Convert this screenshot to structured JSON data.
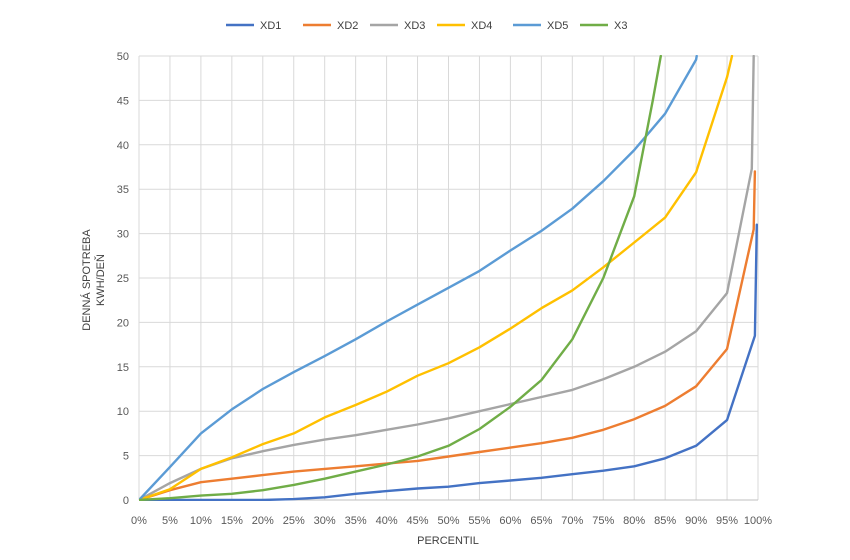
{
  "chart_data": {
    "type": "line",
    "xlabel": "PERCENTIL",
    "ylabel_line1": "DENNÁ SPOTREBA",
    "ylabel_line2": "KWH/DEŇ",
    "ylim": [
      0,
      50
    ],
    "yticks": [
      0,
      5,
      10,
      15,
      20,
      25,
      30,
      35,
      40,
      45,
      50
    ],
    "grid": "vertical and horizontal",
    "legend_position": "top",
    "x_tick_labels": [
      "0%",
      "5%",
      "10%",
      "15%",
      "20%",
      "25%",
      "30%",
      "35%",
      "40%",
      "45%",
      "50%",
      "55%",
      "60%",
      "65%",
      "70%",
      "75%",
      "80%",
      "85%",
      "90%",
      "95%",
      "100%"
    ],
    "series": [
      {
        "name": "XD1",
        "color": "#4472C4",
        "points": [
          [
            0,
            0
          ],
          [
            5,
            0
          ],
          [
            10,
            0
          ],
          [
            15,
            0
          ],
          [
            20,
            0
          ],
          [
            25,
            0.1
          ],
          [
            30,
            0.3
          ],
          [
            35,
            0.7
          ],
          [
            40,
            1.0
          ],
          [
            45,
            1.3
          ],
          [
            50,
            1.5
          ],
          [
            55,
            1.9
          ],
          [
            60,
            2.2
          ],
          [
            65,
            2.5
          ],
          [
            70,
            2.9
          ],
          [
            75,
            3.3
          ],
          [
            80,
            3.8
          ],
          [
            85,
            4.7
          ],
          [
            90,
            6.1
          ],
          [
            95,
            9.0
          ],
          [
            99.5,
            18.5
          ],
          [
            99.8,
            31
          ]
        ]
      },
      {
        "name": "XD2",
        "color": "#ED7D31",
        "points": [
          [
            0,
            0
          ],
          [
            5,
            1.1
          ],
          [
            10,
            2.0
          ],
          [
            15,
            2.4
          ],
          [
            20,
            2.8
          ],
          [
            25,
            3.2
          ],
          [
            30,
            3.5
          ],
          [
            35,
            3.8
          ],
          [
            40,
            4.1
          ],
          [
            45,
            4.4
          ],
          [
            50,
            4.9
          ],
          [
            55,
            5.4
          ],
          [
            60,
            5.9
          ],
          [
            65,
            6.4
          ],
          [
            70,
            7.0
          ],
          [
            75,
            7.9
          ],
          [
            80,
            9.1
          ],
          [
            85,
            10.6
          ],
          [
            90,
            12.8
          ],
          [
            95,
            17.0
          ],
          [
            99.3,
            30.5
          ],
          [
            99.5,
            37
          ]
        ]
      },
      {
        "name": "XD3",
        "color": "#A5A5A5",
        "points": [
          [
            0,
            0
          ],
          [
            5,
            1.9
          ],
          [
            10,
            3.5
          ],
          [
            15,
            4.7
          ],
          [
            20,
            5.5
          ],
          [
            25,
            6.2
          ],
          [
            30,
            6.8
          ],
          [
            35,
            7.3
          ],
          [
            40,
            7.9
          ],
          [
            45,
            8.5
          ],
          [
            50,
            9.2
          ],
          [
            55,
            10.0
          ],
          [
            60,
            10.8
          ],
          [
            65,
            11.6
          ],
          [
            70,
            12.4
          ],
          [
            75,
            13.6
          ],
          [
            80,
            15.0
          ],
          [
            85,
            16.7
          ],
          [
            90,
            19.0
          ],
          [
            95,
            23.3
          ],
          [
            99.0,
            37.3
          ],
          [
            99.3,
            50
          ]
        ]
      },
      {
        "name": "XD4",
        "color": "#FFC000",
        "points": [
          [
            0,
            0
          ],
          [
            5,
            1.2
          ],
          [
            10,
            3.5
          ],
          [
            15,
            4.8
          ],
          [
            20,
            6.3
          ],
          [
            25,
            7.5
          ],
          [
            30,
            9.3
          ],
          [
            35,
            10.7
          ],
          [
            40,
            12.2
          ],
          [
            45,
            14.0
          ],
          [
            50,
            15.4
          ],
          [
            55,
            17.2
          ],
          [
            60,
            19.3
          ],
          [
            65,
            21.6
          ],
          [
            70,
            23.6
          ],
          [
            75,
            26.2
          ],
          [
            80,
            29.0
          ],
          [
            85,
            31.8
          ],
          [
            90,
            36.9
          ],
          [
            95,
            47.6
          ],
          [
            95.8,
            50
          ]
        ]
      },
      {
        "name": "XD5",
        "color": "#5B9BD5",
        "points": [
          [
            0,
            0
          ],
          [
            5,
            3.7
          ],
          [
            10,
            7.5
          ],
          [
            15,
            10.2
          ],
          [
            20,
            12.5
          ],
          [
            25,
            14.4
          ],
          [
            30,
            16.2
          ],
          [
            35,
            18.1
          ],
          [
            40,
            20.1
          ],
          [
            45,
            22.0
          ],
          [
            50,
            23.9
          ],
          [
            55,
            25.8
          ],
          [
            60,
            28.1
          ],
          [
            65,
            30.3
          ],
          [
            70,
            32.8
          ],
          [
            75,
            35.9
          ],
          [
            80,
            39.4
          ],
          [
            85,
            43.5
          ],
          [
            90,
            49.6
          ],
          [
            90.1,
            50
          ]
        ]
      },
      {
        "name": "X3",
        "color": "#70AD47",
        "points": [
          [
            0,
            0
          ],
          [
            5,
            0.2
          ],
          [
            10,
            0.5
          ],
          [
            15,
            0.7
          ],
          [
            20,
            1.1
          ],
          [
            25,
            1.7
          ],
          [
            30,
            2.4
          ],
          [
            35,
            3.2
          ],
          [
            40,
            4.0
          ],
          [
            45,
            4.9
          ],
          [
            50,
            6.1
          ],
          [
            55,
            8.0
          ],
          [
            60,
            10.5
          ],
          [
            65,
            13.5
          ],
          [
            70,
            18.1
          ],
          [
            75,
            25.0
          ],
          [
            80,
            34.2
          ],
          [
            83,
            45.0
          ],
          [
            84.3,
            50
          ]
        ]
      }
    ]
  }
}
